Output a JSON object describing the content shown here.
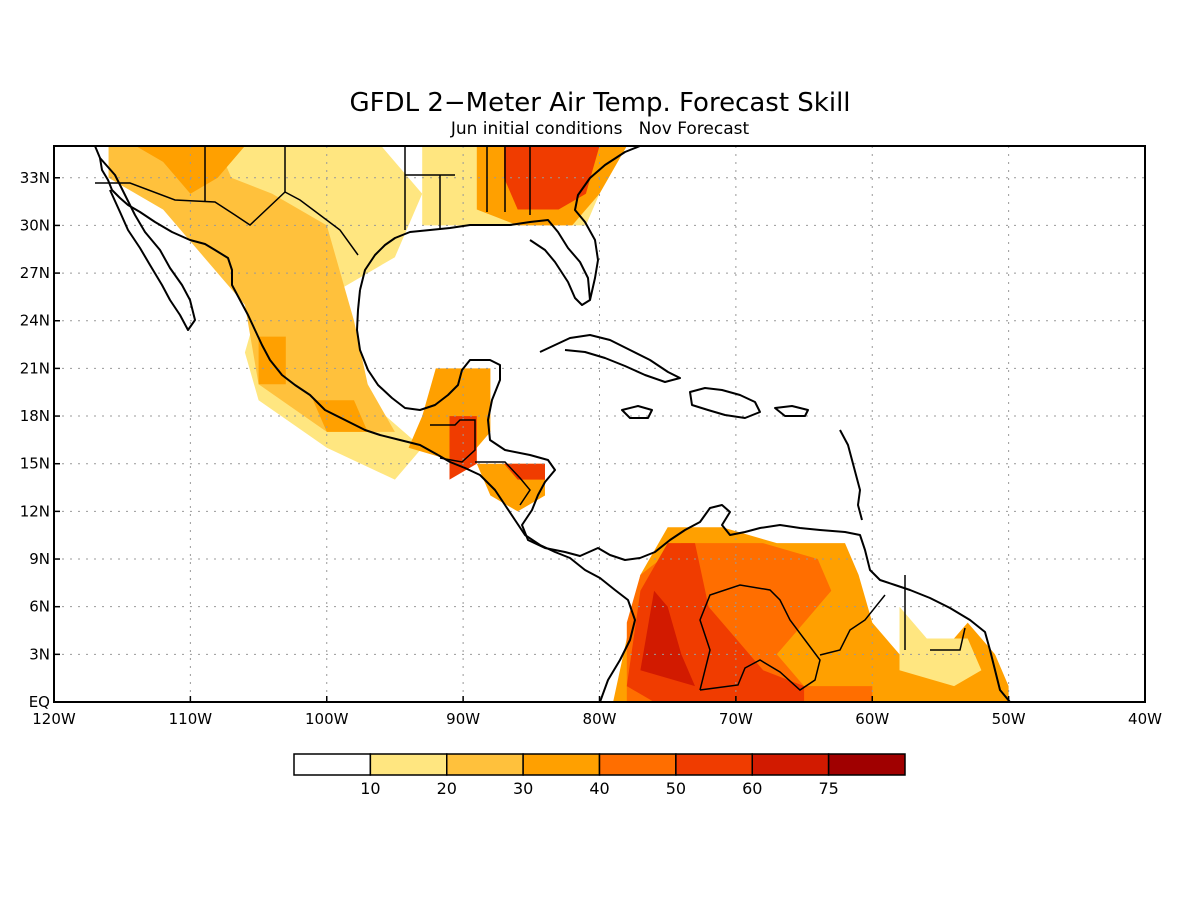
{
  "title": "GFDL 2−Meter Air Temp. Forecast Skill",
  "subtitle": "Jun initial conditions   Nov Forecast",
  "axes": {
    "lon_ticks": [
      {
        "value": -120,
        "label": "120W"
      },
      {
        "value": -110,
        "label": "110W"
      },
      {
        "value": -100,
        "label": "100W"
      },
      {
        "value": -90,
        "label": "90W"
      },
      {
        "value": -80,
        "label": "80W"
      },
      {
        "value": -70,
        "label": "70W"
      },
      {
        "value": -60,
        "label": "60W"
      },
      {
        "value": -50,
        "label": "50W"
      },
      {
        "value": -40,
        "label": "40W"
      }
    ],
    "lat_ticks": [
      {
        "value": 0,
        "label": "EQ"
      },
      {
        "value": 3,
        "label": "3N"
      },
      {
        "value": 6,
        "label": "6N"
      },
      {
        "value": 9,
        "label": "9N"
      },
      {
        "value": 12,
        "label": "12N"
      },
      {
        "value": 15,
        "label": "15N"
      },
      {
        "value": 18,
        "label": "18N"
      },
      {
        "value": 21,
        "label": "21N"
      },
      {
        "value": 24,
        "label": "24N"
      },
      {
        "value": 27,
        "label": "27N"
      },
      {
        "value": 30,
        "label": "30N"
      },
      {
        "value": 33,
        "label": "33N"
      }
    ],
    "lon_range": [
      -120,
      -40
    ],
    "lat_range": [
      0,
      35
    ],
    "grid": "dotted"
  },
  "colorbar": {
    "levels": [
      "10",
      "20",
      "30",
      "40",
      "50",
      "60",
      "75"
    ],
    "colors": [
      "#ffffff",
      "#ffe680",
      "#ffc13c",
      "#ffa000",
      "#ff6e00",
      "#f03c00",
      "#d21a00",
      "#a00000"
    ]
  },
  "skill_patches": [
    {
      "color": "#ffe680",
      "poly": [
        [
          -116,
          35
        ],
        [
          -96,
          35
        ],
        [
          -93,
          32
        ],
        [
          -95,
          28
        ],
        [
          -99,
          26
        ],
        [
          -98,
          23
        ],
        [
          -97,
          19
        ],
        [
          -93,
          16
        ],
        [
          -95,
          14
        ],
        [
          -100,
          16
        ],
        [
          -105,
          19
        ],
        [
          -106,
          22
        ],
        [
          -105,
          25
        ],
        [
          -107,
          27
        ],
        [
          -110,
          30
        ],
        [
          -116,
          33
        ]
      ]
    },
    {
      "color": "#ffc13c",
      "poly": [
        [
          -116,
          35
        ],
        [
          -108,
          35
        ],
        [
          -107,
          33
        ],
        [
          -104,
          32
        ],
        [
          -100,
          30
        ],
        [
          -99,
          27
        ],
        [
          -98,
          24
        ],
        [
          -97,
          20
        ],
        [
          -95,
          17
        ],
        [
          -100,
          17
        ],
        [
          -105,
          20
        ],
        [
          -106,
          25
        ],
        [
          -109,
          28
        ],
        [
          -112,
          31
        ],
        [
          -116,
          33
        ]
      ]
    },
    {
      "color": "#ffa000",
      "poly": [
        [
          -114,
          35
        ],
        [
          -112,
          34
        ],
        [
          -110,
          32
        ],
        [
          -108,
          33
        ],
        [
          -106,
          35
        ]
      ]
    },
    {
      "color": "#ffa000",
      "poly": [
        [
          -105,
          23
        ],
        [
          -103,
          23
        ],
        [
          -103,
          20
        ],
        [
          -105,
          20
        ]
      ]
    },
    {
      "color": "#ffa000",
      "poly": [
        [
          -101,
          19
        ],
        [
          -98,
          19
        ],
        [
          -97,
          17
        ],
        [
          -100,
          17
        ]
      ]
    },
    {
      "color": "#ffe680",
      "poly": [
        [
          -93,
          35
        ],
        [
          -78,
          35
        ],
        [
          -80,
          32
        ],
        [
          -81,
          30
        ],
        [
          -84,
          30
        ],
        [
          -88,
          30
        ],
        [
          -93,
          30
        ]
      ]
    },
    {
      "color": "#ffa000",
      "poly": [
        [
          -89,
          35
        ],
        [
          -78,
          35
        ],
        [
          -80,
          32
        ],
        [
          -82,
          30
        ],
        [
          -86,
          30
        ],
        [
          -89,
          31
        ]
      ]
    },
    {
      "color": "#f03c00",
      "poly": [
        [
          -87,
          35
        ],
        [
          -80,
          35
        ],
        [
          -81,
          32
        ],
        [
          -83,
          31
        ],
        [
          -86,
          31
        ],
        [
          -87,
          33
        ]
      ]
    },
    {
      "color": "#ffa000",
      "poly": [
        [
          -92,
          21
        ],
        [
          -88,
          21
        ],
        [
          -88,
          17
        ],
        [
          -90,
          15
        ],
        [
          -94,
          16
        ],
        [
          -93,
          18
        ]
      ]
    },
    {
      "color": "#f03c00",
      "poly": [
        [
          -91,
          18
        ],
        [
          -89,
          18
        ],
        [
          -89,
          15
        ],
        [
          -91,
          14
        ]
      ]
    },
    {
      "color": "#ffa000",
      "poly": [
        [
          -89,
          15
        ],
        [
          -84,
          15
        ],
        [
          -84,
          13
        ],
        [
          -86,
          12
        ],
        [
          -88,
          13
        ]
      ]
    },
    {
      "color": "#f03c00",
      "poly": [
        [
          -87,
          15
        ],
        [
          -84,
          15
        ],
        [
          -84,
          14
        ],
        [
          -86,
          14
        ]
      ]
    },
    {
      "color": "#ffa000",
      "poly": [
        [
          -79,
          0
        ],
        [
          -78,
          4
        ],
        [
          -77,
          8
        ],
        [
          -75,
          11
        ],
        [
          -71,
          11
        ],
        [
          -67,
          10
        ],
        [
          -62,
          10
        ],
        [
          -61,
          8
        ],
        [
          -60,
          5
        ],
        [
          -58,
          3
        ],
        [
          -55,
          3
        ],
        [
          -53,
          5
        ],
        [
          -51,
          3
        ],
        [
          -50,
          1
        ],
        [
          -50,
          0
        ]
      ]
    },
    {
      "color": "#ff6e00",
      "poly": [
        [
          -78,
          0
        ],
        [
          -78,
          5
        ],
        [
          -77,
          8
        ],
        [
          -74,
          10
        ],
        [
          -71,
          10
        ],
        [
          -68,
          10
        ],
        [
          -64,
          9
        ],
        [
          -63,
          7
        ],
        [
          -65,
          5
        ],
        [
          -67,
          3
        ],
        [
          -65,
          1
        ],
        [
          -60,
          1
        ],
        [
          -60,
          0
        ]
      ]
    },
    {
      "color": "#f03c00",
      "poly": [
        [
          -78,
          1
        ],
        [
          -77,
          7
        ],
        [
          -75,
          10
        ],
        [
          -73,
          10
        ],
        [
          -72,
          6
        ],
        [
          -70,
          4
        ],
        [
          -68,
          2
        ],
        [
          -65,
          1
        ],
        [
          -65,
          0
        ],
        [
          -76,
          0
        ]
      ]
    },
    {
      "color": "#d21a00",
      "poly": [
        [
          -77,
          2
        ],
        [
          -76,
          7
        ],
        [
          -75,
          6
        ],
        [
          -74,
          3
        ],
        [
          -73,
          1
        ]
      ]
    },
    {
      "color": "#ffe680",
      "poly": [
        [
          -58,
          6
        ],
        [
          -56,
          4
        ],
        [
          -53,
          4
        ],
        [
          -52,
          2
        ],
        [
          -54,
          1
        ],
        [
          -58,
          2
        ]
      ]
    }
  ],
  "map_labels": []
}
